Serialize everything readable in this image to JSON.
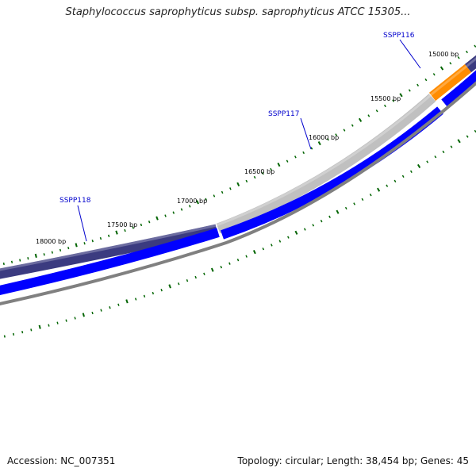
{
  "title": "Staphylococcus saprophyticus subsp. saprophyticus ATCC 15305...",
  "footer": {
    "accession_label": "Accession:",
    "accession": "NC_007351",
    "topology": "Topology: circular; Length: 38,454 bp; Genes: 45"
  },
  "colors": {
    "gc_track": "#00008b",
    "gene_forward_dark": "#3b3b80",
    "gene_forward_light": "#bdbdbd",
    "gene_forward_orange": "#ff8c00",
    "gene_reverse": "#0000ff",
    "backbone": "#808080",
    "tick": "#006400",
    "label": "#0000cd"
  },
  "plasmid_length_bp": 38454,
  "tick_labels": [
    {
      "bp": 15000,
      "text": "15000 bp"
    },
    {
      "bp": 15500,
      "text": "15500 bp"
    },
    {
      "bp": 16000,
      "text": "16000 bp"
    },
    {
      "bp": 16500,
      "text": "16500 bp"
    },
    {
      "bp": 17000,
      "text": "17000 bp"
    },
    {
      "bp": 17500,
      "text": "17500 bp"
    },
    {
      "bp": 18000,
      "text": "18000 bp"
    }
  ],
  "gene_labels": [
    {
      "name": "SSPP116",
      "text": "SSPP116"
    },
    {
      "name": "SSPP117",
      "text": "SSPP117"
    },
    {
      "name": "SSPP118",
      "text": "SSPP118"
    }
  ]
}
